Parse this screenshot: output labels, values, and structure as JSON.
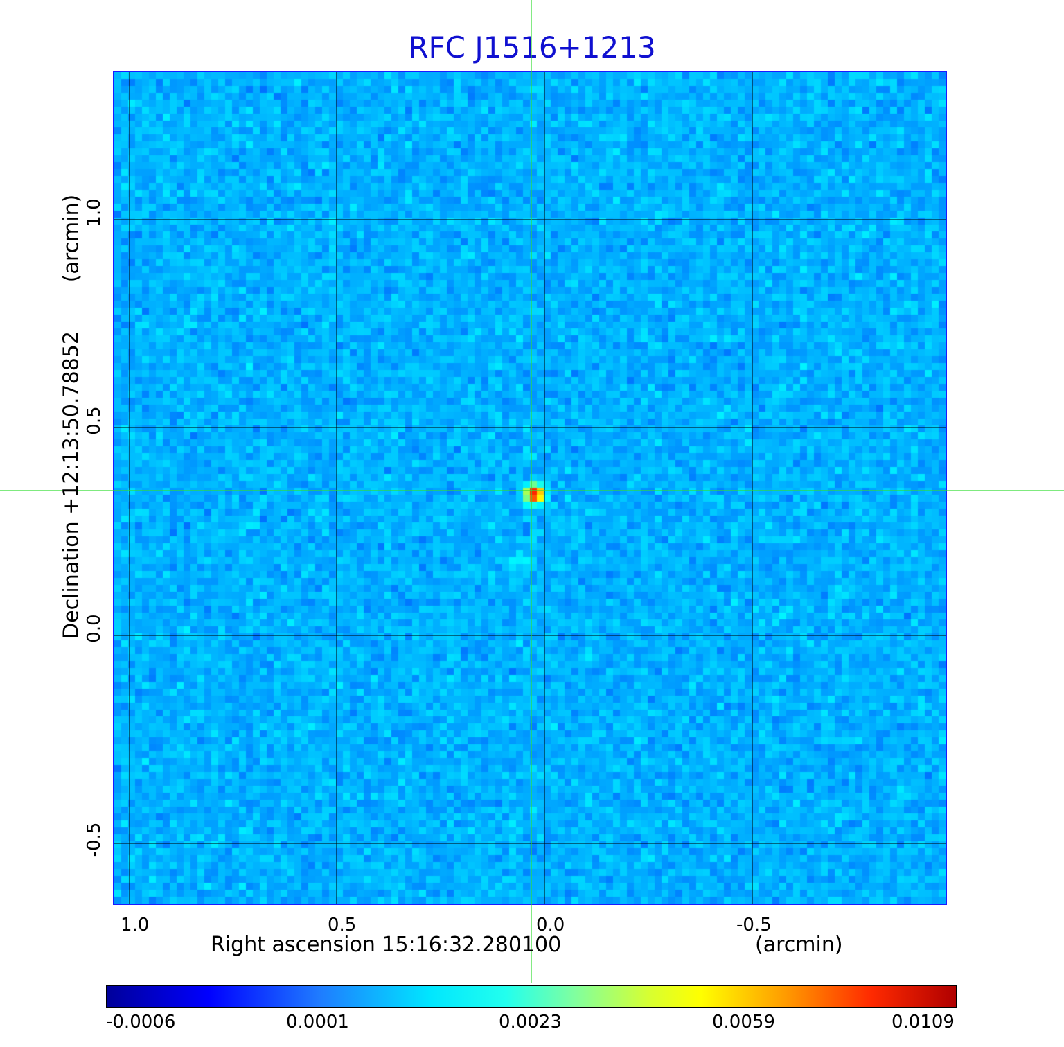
{
  "title": "RFC J1516+1213",
  "x_axis": {
    "label": "Right ascension  15:16:32.280100",
    "unit": "(arcmin)",
    "ticks": [
      "1.0",
      "0.5",
      "0.0",
      "-0.5"
    ]
  },
  "y_axis": {
    "label": "Declination  +12:13:50.78852",
    "unit": "(arcmin)",
    "ticks": [
      "1.0",
      "0.5",
      "0.0",
      "-0.5"
    ]
  },
  "colorbar": {
    "ticks": [
      "-0.0006",
      "0.0001",
      "0.0023",
      "0.0059",
      "0.0109"
    ]
  },
  "colors": {
    "background_map": "#1f7bff",
    "crosshair": "#33dd33",
    "grid": "#000000",
    "title": "#1010d0"
  }
}
